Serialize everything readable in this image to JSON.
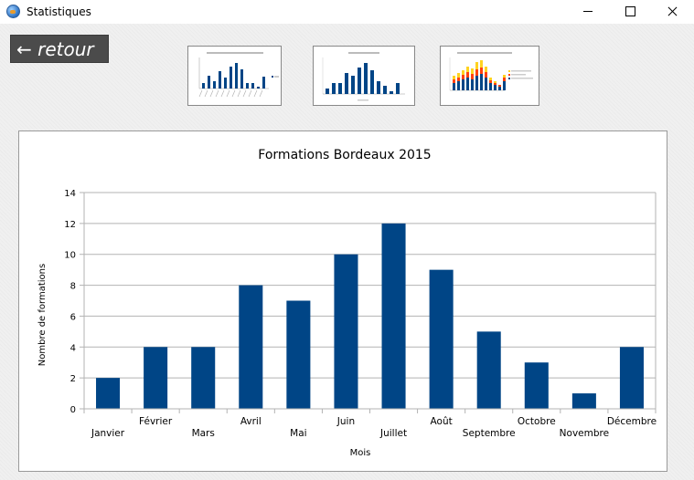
{
  "window": {
    "title": "Statistiques"
  },
  "nav": {
    "back_label": "← retour"
  },
  "thumbnails": [
    {
      "name": "thumbnail-chart-1",
      "kind": "bar-series-legend",
      "bar_color": "#004586"
    },
    {
      "name": "thumbnail-chart-2",
      "kind": "bar",
      "bar_color": "#004586"
    },
    {
      "name": "thumbnail-chart-3",
      "kind": "stacked-bar",
      "colors": [
        "#004586",
        "#ff420e",
        "#ffd320"
      ]
    }
  ],
  "colors": {
    "bar": "#004586",
    "grid": "#b3b3b3",
    "axis": "#b3b3b3"
  },
  "chart_data": {
    "type": "bar",
    "title": "Formations Bordeaux  2015",
    "xlabel": "Mois",
    "ylabel": "Nombre de formations",
    "categories": [
      "Janvier",
      "Février",
      "Mars",
      "Avril",
      "Mai",
      "Juin",
      "Juillet",
      "Août",
      "Septembre",
      "Octobre",
      "Novembre",
      "Décembre"
    ],
    "values": [
      2,
      4,
      4,
      8,
      7,
      10,
      12,
      9,
      5,
      3,
      1,
      4
    ],
    "ylim": [
      0,
      14
    ],
    "yticks": [
      "0",
      "2",
      "4",
      "6",
      "8",
      "10",
      "12",
      "14"
    ],
    "grid": true,
    "legend": "none"
  }
}
